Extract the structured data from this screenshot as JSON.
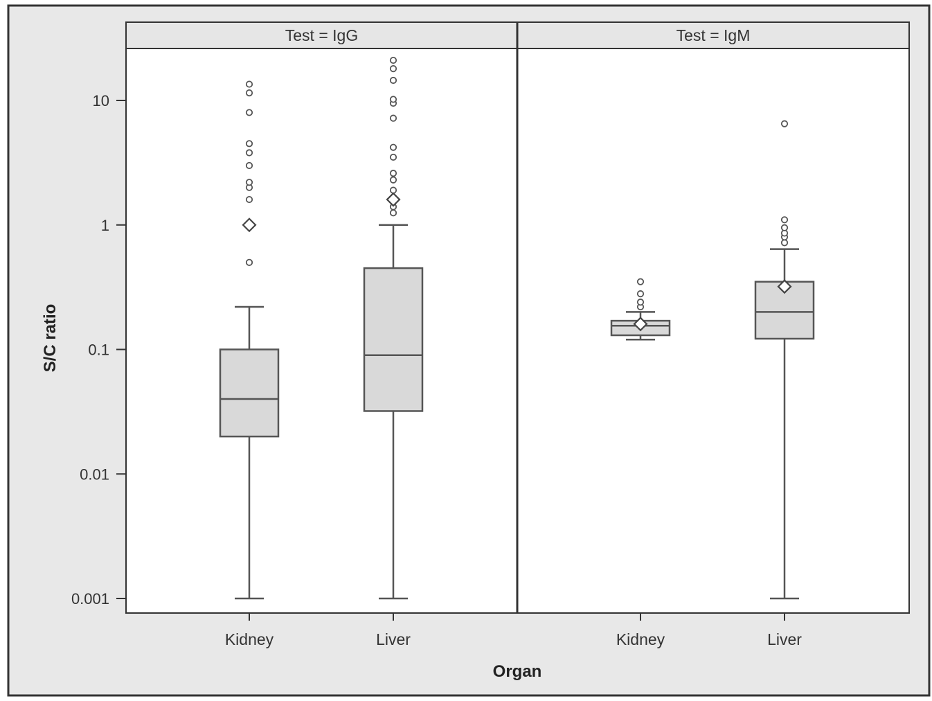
{
  "chart_data": {
    "type": "box",
    "xlabel": "Organ",
    "ylabel": "S/C ratio",
    "y_scale": "log",
    "ylim": [
      0.0007,
      30
    ],
    "y_ticks": [
      0.001,
      0.01,
      0.1,
      1,
      10
    ],
    "y_tick_labels": [
      "0.001",
      "0.01",
      "0.1",
      "1",
      "10"
    ],
    "categories": [
      "Kidney",
      "Liver"
    ],
    "grid": false,
    "legend": "none",
    "colors": {
      "background": "#e8e8e8",
      "panel": "#ffffff",
      "box_fill": "#d9d9d9",
      "line": "#555555",
      "frame": "#333333"
    },
    "panels": [
      {
        "strip_label": "Test = IgG",
        "boxes": [
          {
            "category": "Kidney",
            "whisker_low": 0.001,
            "q1": 0.02,
            "median": 0.04,
            "q3": 0.1,
            "whisker_high": 0.22,
            "mean": 1.0,
            "outliers": [
              0.5,
              1.6,
              2.0,
              2.2,
              3.0,
              3.8,
              4.5,
              8.0,
              11.5,
              13.5
            ]
          },
          {
            "category": "Liver",
            "whisker_low": 0.001,
            "q1": 0.032,
            "median": 0.09,
            "q3": 0.45,
            "whisker_high": 1.0,
            "mean": 1.6,
            "outliers": [
              1.25,
              1.4,
              1.6,
              1.9,
              2.3,
              2.6,
              3.5,
              4.2,
              7.2,
              9.5,
              10.2,
              14.5,
              18.0,
              21.0
            ]
          }
        ]
      },
      {
        "strip_label": "Test = IgM",
        "boxes": [
          {
            "category": "Kidney",
            "whisker_low": 0.12,
            "q1": 0.13,
            "median": 0.155,
            "q3": 0.17,
            "whisker_high": 0.2,
            "mean": 0.16,
            "outliers": [
              0.22,
              0.24,
              0.28,
              0.35
            ]
          },
          {
            "category": "Liver",
            "whisker_low": 0.001,
            "q1": 0.122,
            "median": 0.2,
            "q3": 0.35,
            "whisker_high": 0.64,
            "mean": 0.32,
            "outliers": [
              0.72,
              0.8,
              0.86,
              0.95,
              1.1,
              6.5
            ]
          }
        ]
      }
    ]
  }
}
